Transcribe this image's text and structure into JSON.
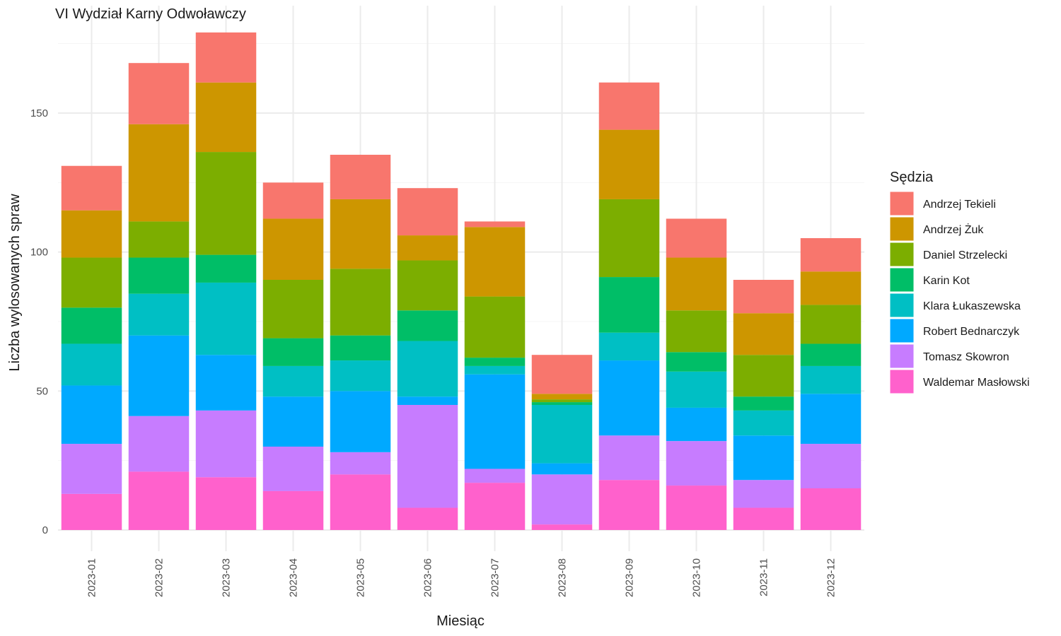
{
  "chart_data": {
    "type": "bar",
    "stacked": true,
    "title": "VI Wydział Karny Odwoławczy",
    "xlabel": "Miesiąc",
    "ylabel": "Liczba wylosowanych spraw",
    "ylim": [
      0,
      180
    ],
    "yticks": [
      0,
      50,
      100,
      150
    ],
    "grid": true,
    "legend_title": "Sędzia",
    "legend_position": "right",
    "categories": [
      "2023-01",
      "2023-02",
      "2023-03",
      "2023-04",
      "2023-05",
      "2023-06",
      "2023-07",
      "2023-08",
      "2023-09",
      "2023-10",
      "2023-11",
      "2023-12"
    ],
    "series": [
      {
        "name": "Waldemar Masłowski",
        "color": "#FF61CC",
        "values": [
          13,
          21,
          19,
          14,
          20,
          8,
          17,
          2,
          18,
          16,
          8,
          15
        ]
      },
      {
        "name": "Tomasz Skowron",
        "color": "#C77CFF",
        "values": [
          18,
          20,
          24,
          16,
          8,
          37,
          5,
          18,
          16,
          16,
          10,
          16
        ]
      },
      {
        "name": "Robert Bednarczyk",
        "color": "#00A9FF",
        "values": [
          21,
          29,
          20,
          18,
          22,
          3,
          34,
          4,
          27,
          12,
          16,
          18
        ]
      },
      {
        "name": "Klara Łukaszewska",
        "color": "#00BFC4",
        "values": [
          15,
          15,
          26,
          11,
          11,
          20,
          3,
          21,
          10,
          13,
          9,
          10
        ]
      },
      {
        "name": "Karin Kot",
        "color": "#00BE67",
        "values": [
          13,
          13,
          10,
          10,
          9,
          11,
          3,
          1,
          20,
          7,
          5,
          8
        ]
      },
      {
        "name": "Daniel Strzelecki",
        "color": "#7CAE00",
        "values": [
          18,
          13,
          37,
          21,
          24,
          18,
          22,
          1,
          28,
          15,
          15,
          14
        ]
      },
      {
        "name": "Andrzej Żuk",
        "color": "#CD9600",
        "values": [
          17,
          35,
          25,
          22,
          25,
          9,
          25,
          2,
          25,
          19,
          15,
          12
        ]
      },
      {
        "name": "Andrzej Tekieli",
        "color": "#F8766D",
        "values": [
          16,
          22,
          18,
          13,
          16,
          17,
          2,
          14,
          17,
          14,
          12,
          12
        ]
      }
    ],
    "legend_order": [
      "Andrzej Tekieli",
      "Andrzej Żuk",
      "Daniel Strzelecki",
      "Karin Kot",
      "Klara Łukaszewska",
      "Robert Bednarczyk",
      "Tomasz Skowron",
      "Waldemar Masłowski"
    ]
  }
}
